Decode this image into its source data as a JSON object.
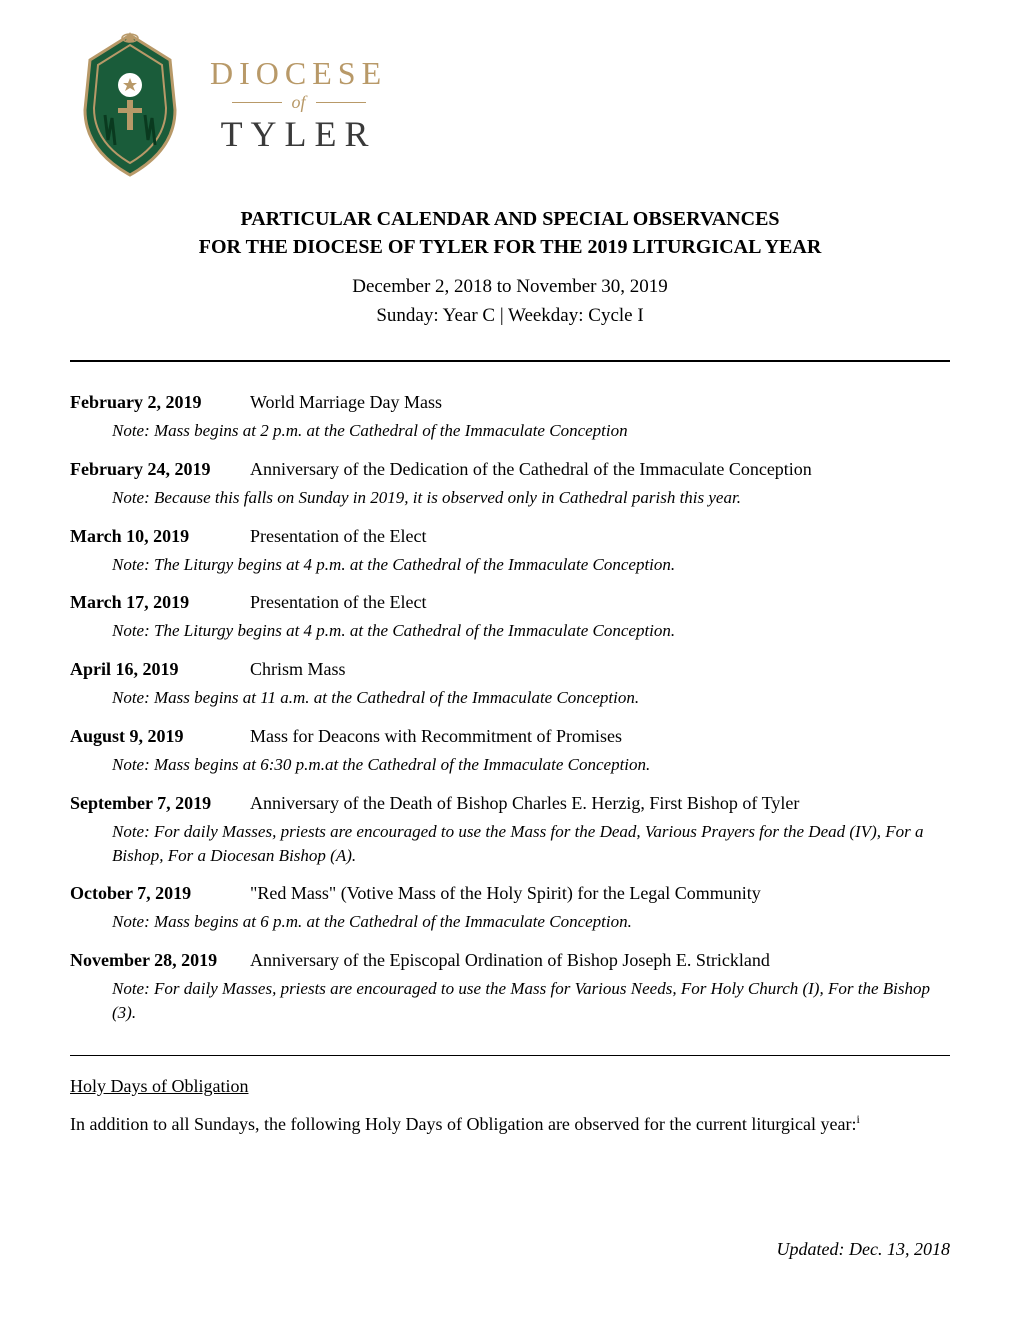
{
  "logo": {
    "diocese": "DIOCESE",
    "of": "of",
    "tyler": "TYLER"
  },
  "title": {
    "line1": "PARTICULAR CALENDAR AND SPECIAL OBSERVANCES",
    "line2": "FOR THE DIOCESE OF TYLER FOR THE 2019 LITURGICAL YEAR"
  },
  "subtitle": {
    "dates": "December 2, 2018 to November 30, 2019",
    "cycle": "Sunday: Year C    |    Weekday: Cycle I"
  },
  "entries": [
    {
      "date": "February 2, 2019",
      "title": "World Marriage Day Mass",
      "note": "Note: Mass begins at 2 p.m. at the Cathedral of the Immaculate Conception"
    },
    {
      "date": "February 24, 2019",
      "title": "Anniversary of the Dedication of the Cathedral of the Immaculate Conception",
      "note": "Note: Because this falls on Sunday in 2019, it is observed only in Cathedral parish this year."
    },
    {
      "date": "March 10, 2019",
      "title": "Presentation of the Elect",
      "note": "Note: The Liturgy begins at 4 p.m. at the Cathedral of the Immaculate Conception."
    },
    {
      "date": "March 17, 2019",
      "title": "Presentation of the Elect",
      "note": "Note: The Liturgy begins at 4 p.m. at the Cathedral of the Immaculate Conception."
    },
    {
      "date": "April 16, 2019",
      "title": "Chrism Mass",
      "note": "Note: Mass begins at 11 a.m. at the Cathedral of the Immaculate Conception."
    },
    {
      "date": "August 9, 2019",
      "title": "Mass for Deacons with Recommitment of Promises",
      "note": "Note: Mass begins at 6:30 p.m.at the Cathedral of the Immaculate Conception."
    },
    {
      "date": "September 7, 2019",
      "title": "Anniversary of the Death of Bishop Charles E. Herzig, First Bishop of Tyler",
      "note": "Note: For daily Masses, priests are encouraged to use the Mass for the Dead, Various Prayers for the Dead (IV), For a Bishop, For a Diocesan Bishop (A)."
    },
    {
      "date": "October 7, 2019",
      "title": " \"Red Mass\" (Votive Mass of the Holy Spirit) for the Legal Community",
      "note": "Note: Mass begins at 6 p.m. at the Cathedral of the Immaculate Conception."
    },
    {
      "date": "November 28, 2019",
      "title": "Anniversary of the Episcopal Ordination of Bishop Joseph E. Strickland",
      "note": "Note: For daily Masses, priests are encouraged to use the Mass for Various Needs, For Holy Church (I), For the Bishop (3)."
    }
  ],
  "holy_days": {
    "heading": "Holy Days of Obligation",
    "text": "In addition to all Sundays, the following Holy Days of Obligation are observed for the current liturgical year:",
    "footnote": "i"
  },
  "footer": {
    "updated": "Updated: Dec. 13, 2018"
  },
  "colors": {
    "gold": "#b89968",
    "dark_green": "#1a5c3a",
    "text_dark": "#3a3a3a"
  }
}
